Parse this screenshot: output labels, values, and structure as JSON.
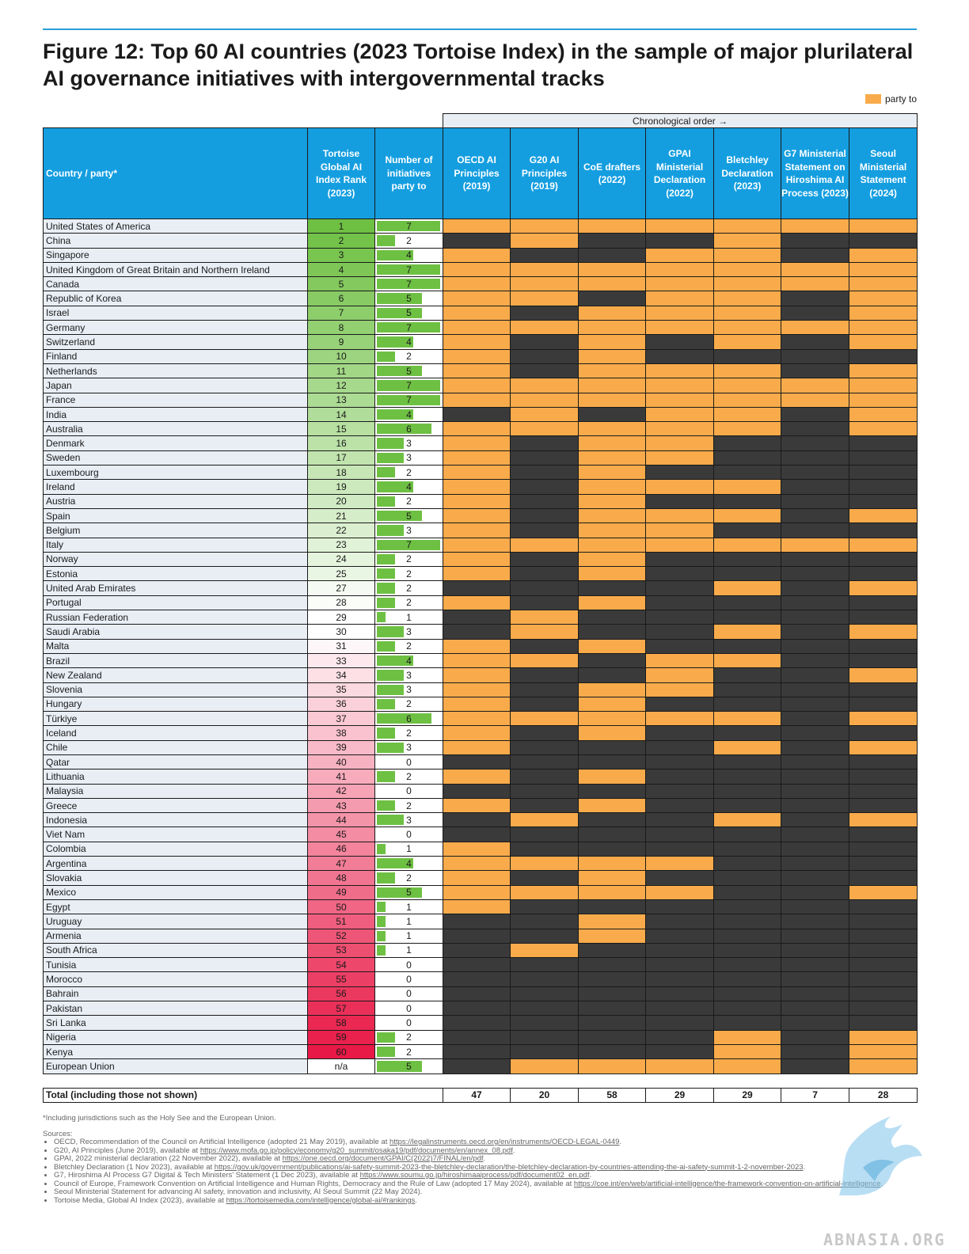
{
  "title": "Figure 12: Top 60 AI countries (2023 Tortoise Index) in the sample of major plurilateral AI governance initiatives with intergovernmental tracks",
  "legend_label": "party to",
  "chronological_label": "Chronological order →",
  "colors": {
    "party": "#f9ab4b",
    "not_party": "#3a3a3a",
    "header_bg": "#149ee0",
    "bar": "#6ec043"
  },
  "headers": {
    "country": "Country / party*",
    "rank": "Tortoise Global AI Index Rank (2023)",
    "count": "Number of initiatives party to",
    "initiatives": [
      "OECD AI Principles (2019)",
      "G20 AI Principles (2019)",
      "CoE drafters (2022)",
      "GPAI Ministerial Declaration (2022)",
      "Bletchley Declaration (2023)",
      "G7 Ministerial Statement on Hiroshima AI Process (2023)",
      "Seoul Ministerial Statement (2024)"
    ]
  },
  "rows": [
    {
      "country": "United States of America",
      "rank": "1",
      "count": 7,
      "m": [
        1,
        1,
        1,
        1,
        1,
        1,
        1
      ]
    },
    {
      "country": "China",
      "rank": "2",
      "count": 2,
      "m": [
        0,
        1,
        0,
        0,
        1,
        0,
        0
      ]
    },
    {
      "country": "Singapore",
      "rank": "3",
      "count": 4,
      "m": [
        1,
        0,
        0,
        1,
        1,
        0,
        1
      ]
    },
    {
      "country": "United Kingdom of Great Britain and Northern Ireland",
      "rank": "4",
      "count": 7,
      "m": [
        1,
        1,
        1,
        1,
        1,
        1,
        1
      ]
    },
    {
      "country": "Canada",
      "rank": "5",
      "count": 7,
      "m": [
        1,
        1,
        1,
        1,
        1,
        1,
        1
      ]
    },
    {
      "country": "Republic of Korea",
      "rank": "6",
      "count": 5,
      "m": [
        1,
        1,
        0,
        1,
        1,
        0,
        1
      ]
    },
    {
      "country": "Israel",
      "rank": "7",
      "count": 5,
      "m": [
        1,
        0,
        1,
        1,
        1,
        0,
        1
      ]
    },
    {
      "country": "Germany",
      "rank": "8",
      "count": 7,
      "m": [
        1,
        1,
        1,
        1,
        1,
        1,
        1
      ]
    },
    {
      "country": "Switzerland",
      "rank": "9",
      "count": 4,
      "m": [
        1,
        0,
        1,
        0,
        1,
        0,
        1
      ]
    },
    {
      "country": "Finland",
      "rank": "10",
      "count": 2,
      "m": [
        1,
        0,
        1,
        0,
        0,
        0,
        0
      ]
    },
    {
      "country": "Netherlands",
      "rank": "11",
      "count": 5,
      "m": [
        1,
        0,
        1,
        1,
        1,
        0,
        1
      ]
    },
    {
      "country": "Japan",
      "rank": "12",
      "count": 7,
      "m": [
        1,
        1,
        1,
        1,
        1,
        1,
        1
      ]
    },
    {
      "country": "France",
      "rank": "13",
      "count": 7,
      "m": [
        1,
        1,
        1,
        1,
        1,
        1,
        1
      ]
    },
    {
      "country": "India",
      "rank": "14",
      "count": 4,
      "m": [
        0,
        1,
        0,
        1,
        1,
        0,
        1
      ]
    },
    {
      "country": "Australia",
      "rank": "15",
      "count": 6,
      "m": [
        1,
        1,
        1,
        1,
        1,
        0,
        1
      ]
    },
    {
      "country": "Denmark",
      "rank": "16",
      "count": 3,
      "m": [
        1,
        0,
        1,
        1,
        0,
        0,
        0
      ]
    },
    {
      "country": "Sweden",
      "rank": "17",
      "count": 3,
      "m": [
        1,
        0,
        1,
        1,
        0,
        0,
        0
      ]
    },
    {
      "country": "Luxembourg",
      "rank": "18",
      "count": 2,
      "m": [
        1,
        0,
        1,
        0,
        0,
        0,
        0
      ]
    },
    {
      "country": "Ireland",
      "rank": "19",
      "count": 4,
      "m": [
        1,
        0,
        1,
        1,
        1,
        0,
        0
      ]
    },
    {
      "country": "Austria",
      "rank": "20",
      "count": 2,
      "m": [
        1,
        0,
        1,
        0,
        0,
        0,
        0
      ]
    },
    {
      "country": "Spain",
      "rank": "21",
      "count": 5,
      "m": [
        1,
        0,
        1,
        1,
        1,
        0,
        1
      ]
    },
    {
      "country": "Belgium",
      "rank": "22",
      "count": 3,
      "m": [
        1,
        0,
        1,
        1,
        0,
        0,
        0
      ]
    },
    {
      "country": "Italy",
      "rank": "23",
      "count": 7,
      "m": [
        1,
        1,
        1,
        1,
        1,
        1,
        1
      ]
    },
    {
      "country": "Norway",
      "rank": "24",
      "count": 2,
      "m": [
        1,
        0,
        1,
        0,
        0,
        0,
        0
      ]
    },
    {
      "country": "Estonia",
      "rank": "25",
      "count": 2,
      "m": [
        1,
        0,
        1,
        0,
        0,
        0,
        0
      ]
    },
    {
      "country": "United Arab Emirates",
      "rank": "27",
      "count": 2,
      "m": [
        0,
        0,
        0,
        0,
        1,
        0,
        1
      ]
    },
    {
      "country": "Portugal",
      "rank": "28",
      "count": 2,
      "m": [
        1,
        0,
        1,
        0,
        0,
        0,
        0
      ]
    },
    {
      "country": "Russian Federation",
      "rank": "29",
      "count": 1,
      "m": [
        0,
        1,
        0,
        0,
        0,
        0,
        0
      ]
    },
    {
      "country": "Saudi Arabia",
      "rank": "30",
      "count": 3,
      "m": [
        0,
        1,
        0,
        0,
        1,
        0,
        1
      ]
    },
    {
      "country": "Malta",
      "rank": "31",
      "count": 2,
      "m": [
        1,
        0,
        1,
        0,
        0,
        0,
        0
      ]
    },
    {
      "country": "Brazil",
      "rank": "33",
      "count": 4,
      "m": [
        1,
        1,
        0,
        1,
        1,
        0,
        0
      ]
    },
    {
      "country": "New Zealand",
      "rank": "34",
      "count": 3,
      "m": [
        1,
        0,
        0,
        1,
        0,
        0,
        1
      ]
    },
    {
      "country": "Slovenia",
      "rank": "35",
      "count": 3,
      "m": [
        1,
        0,
        1,
        1,
        0,
        0,
        0
      ]
    },
    {
      "country": "Hungary",
      "rank": "36",
      "count": 2,
      "m": [
        1,
        0,
        1,
        0,
        0,
        0,
        0
      ]
    },
    {
      "country": "Türkiye",
      "rank": "37",
      "count": 6,
      "m": [
        1,
        1,
        1,
        1,
        1,
        0,
        1
      ]
    },
    {
      "country": "Iceland",
      "rank": "38",
      "count": 2,
      "m": [
        1,
        0,
        1,
        0,
        0,
        0,
        0
      ]
    },
    {
      "country": "Chile",
      "rank": "39",
      "count": 3,
      "m": [
        1,
        0,
        0,
        0,
        1,
        0,
        1
      ]
    },
    {
      "country": "Qatar",
      "rank": "40",
      "count": 0,
      "m": [
        0,
        0,
        0,
        0,
        0,
        0,
        0
      ]
    },
    {
      "country": "Lithuania",
      "rank": "41",
      "count": 2,
      "m": [
        1,
        0,
        1,
        0,
        0,
        0,
        0
      ]
    },
    {
      "country": "Malaysia",
      "rank": "42",
      "count": 0,
      "m": [
        0,
        0,
        0,
        0,
        0,
        0,
        0
      ]
    },
    {
      "country": "Greece",
      "rank": "43",
      "count": 2,
      "m": [
        1,
        0,
        1,
        0,
        0,
        0,
        0
      ]
    },
    {
      "country": "Indonesia",
      "rank": "44",
      "count": 3,
      "m": [
        0,
        1,
        0,
        0,
        1,
        0,
        1
      ]
    },
    {
      "country": "Viet Nam",
      "rank": "45",
      "count": 0,
      "m": [
        0,
        0,
        0,
        0,
        0,
        0,
        0
      ]
    },
    {
      "country": "Colombia",
      "rank": "46",
      "count": 1,
      "m": [
        1,
        0,
        0,
        0,
        0,
        0,
        0
      ]
    },
    {
      "country": "Argentina",
      "rank": "47",
      "count": 4,
      "m": [
        1,
        1,
        1,
        1,
        0,
        0,
        0
      ]
    },
    {
      "country": "Slovakia",
      "rank": "48",
      "count": 2,
      "m": [
        1,
        0,
        1,
        0,
        0,
        0,
        0
      ]
    },
    {
      "country": "Mexico",
      "rank": "49",
      "count": 5,
      "m": [
        1,
        1,
        1,
        1,
        0,
        0,
        1
      ]
    },
    {
      "country": "Egypt",
      "rank": "50",
      "count": 1,
      "m": [
        1,
        0,
        0,
        0,
        0,
        0,
        0
      ]
    },
    {
      "country": "Uruguay",
      "rank": "51",
      "count": 1,
      "m": [
        0,
        0,
        1,
        0,
        0,
        0,
        0
      ]
    },
    {
      "country": "Armenia",
      "rank": "52",
      "count": 1,
      "m": [
        0,
        0,
        1,
        0,
        0,
        0,
        0
      ]
    },
    {
      "country": "South Africa",
      "rank": "53",
      "count": 1,
      "m": [
        0,
        1,
        0,
        0,
        0,
        0,
        0
      ]
    },
    {
      "country": "Tunisia",
      "rank": "54",
      "count": 0,
      "m": [
        0,
        0,
        0,
        0,
        0,
        0,
        0
      ]
    },
    {
      "country": "Morocco",
      "rank": "55",
      "count": 0,
      "m": [
        0,
        0,
        0,
        0,
        0,
        0,
        0
      ]
    },
    {
      "country": "Bahrain",
      "rank": "56",
      "count": 0,
      "m": [
        0,
        0,
        0,
        0,
        0,
        0,
        0
      ]
    },
    {
      "country": "Pakistan",
      "rank": "57",
      "count": 0,
      "m": [
        0,
        0,
        0,
        0,
        0,
        0,
        0
      ]
    },
    {
      "country": "Sri Lanka",
      "rank": "58",
      "count": 0,
      "m": [
        0,
        0,
        0,
        0,
        0,
        0,
        0
      ]
    },
    {
      "country": "Nigeria",
      "rank": "59",
      "count": 2,
      "m": [
        0,
        0,
        0,
        0,
        1,
        0,
        1
      ]
    },
    {
      "country": "Kenya",
      "rank": "60",
      "count": 2,
      "m": [
        0,
        0,
        0,
        0,
        1,
        0,
        1
      ]
    },
    {
      "country": "European Union",
      "rank": "n/a",
      "count": 5,
      "m": [
        0,
        1,
        1,
        1,
        1,
        0,
        1
      ]
    }
  ],
  "totals": {
    "label": "Total (including those not shown)",
    "values": [
      "47",
      "20",
      "58",
      "29",
      "29",
      "7",
      "28"
    ]
  },
  "footnote": "*Including jurisdictions such as the Holy See and the European Union.",
  "sources_label": "Sources:",
  "sources": [
    {
      "text": "OECD, Recommendation of the Council on Artificial Intelligence (adopted 21 May 2019), available at ",
      "link": "https://legalinstruments.oecd.org/en/instruments/OECD-LEGAL-0449",
      "end": "."
    },
    {
      "text": "G20, AI Principles (June 2019), available at ",
      "link": "https://www.mofa.go.jp/policy/economy/g20_summit/osaka19/pdf/documents/en/annex_08.pdf",
      "end": "."
    },
    {
      "text": "GPAI, 2022 ministerial declaration (22 November 2022), available at ",
      "link": "https://one.oecd.org/document/GPAI/C(2022)7/FINAL/en/pdf",
      "end": "."
    },
    {
      "text": "Bletchley Declaration (1 Nov 2023), available at ",
      "link": "https://gov.uk/government/publications/ai-safety-summit-2023-the-bletchley-declaration/the-bletchley-declaration-by-countries-attending-the-ai-safety-summit-1-2-november-2023",
      "end": "."
    },
    {
      "text": "G7, Hiroshima AI Process G7 Digital & Tech Ministers' Statement (1 Dec 2023), available at ",
      "link": "https://www.soumu.go.jp/hiroshimaaiprocess/pdf/document02_en.pdf",
      "end": "."
    },
    {
      "text": "Council of Europe, Framework Convention on Artificial Intelligence and Human Rights, Democracy and the Rule of Law (adopted 17 May 2024), available at ",
      "link": "https://coe.int/en/web/artificial-intelligence/the-framework-convention-on-artificial-intelligence",
      "end": "."
    },
    {
      "text": "Seoul Ministerial Statement for advancing AI safety, innovation and inclusivity, AI Seoul Summit (22 May 2024).",
      "link": "",
      "end": ""
    },
    {
      "text": "Tortoise Media, Global AI Index (2023), available at ",
      "link": "https://tortoisemedia.com/intelligence/global-ai/#rankings",
      "end": "."
    }
  ],
  "watermark": "ABNASIA.ORG"
}
